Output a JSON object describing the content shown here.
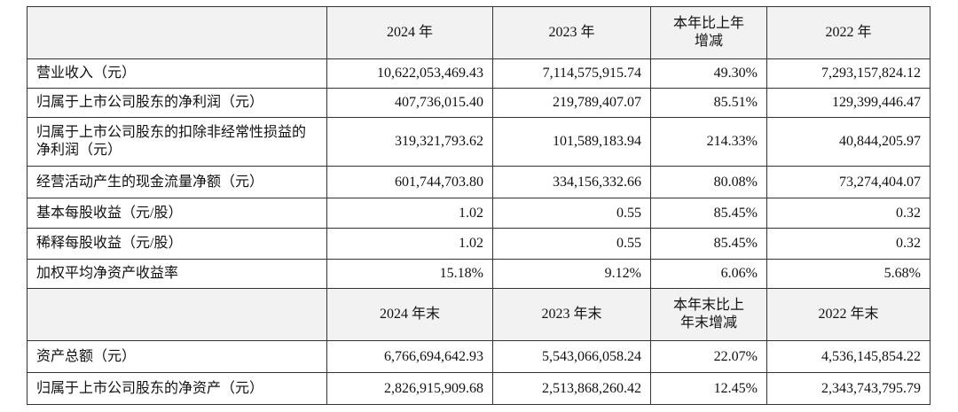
{
  "table": {
    "header1": [
      "2024 年",
      "2023 年",
      "本年比上年增减",
      "2022 年"
    ],
    "rows1": [
      [
        "营业收入（元）",
        "10,622,053,469.43",
        "7,114,575,915.74",
        "49.30%",
        "7,293,157,824.12"
      ],
      [
        "归属于上市公司股东的净利润（元）",
        "407,736,015.40",
        "219,789,407.07",
        "85.51%",
        "129,399,446.47"
      ],
      [
        "归属于上市公司股东的扣除非经常性损益的净利润（元）",
        "319,321,793.62",
        "101,589,183.94",
        "214.33%",
        "40,844,205.97"
      ],
      [
        "经营活动产生的现金流量净额（元）",
        "601,744,703.80",
        "334,156,332.66",
        "80.08%",
        "73,274,404.07"
      ],
      [
        "基本每股收益（元/股）",
        "1.02",
        "0.55",
        "85.45%",
        "0.32"
      ],
      [
        "稀释每股收益（元/股）",
        "1.02",
        "0.55",
        "85.45%",
        "0.32"
      ],
      [
        "加权平均净资产收益率",
        "15.18%",
        "9.12%",
        "6.06%",
        "5.68%"
      ]
    ],
    "header2": [
      "2024 年末",
      "2023 年末",
      "本年末比上年末增减",
      "2022 年末"
    ],
    "rows2": [
      [
        "资产总额（元）",
        "6,766,694,642.93",
        "5,543,066,058.24",
        "22.07%",
        "4,536,145,854.22"
      ],
      [
        "归属于上市公司股东的净资产（元）",
        "2,826,915,909.68",
        "2,513,868,260.42",
        "12.45%",
        "2,343,743,795.79"
      ]
    ]
  }
}
